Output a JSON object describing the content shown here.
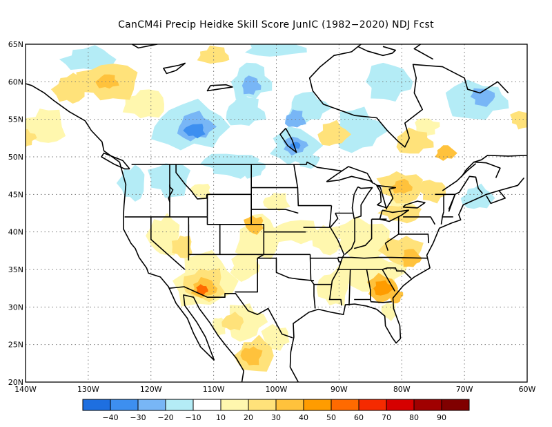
{
  "title": "CanCM4i Precip Heidke Skill Score JunIC (1982−2020) NDJ Fcst",
  "map": {
    "lat_range": [
      20,
      65
    ],
    "lon_range": [
      -140,
      -60
    ],
    "lat_labels": [
      "20N",
      "25N",
      "30N",
      "35N",
      "40N",
      "45N",
      "50N",
      "55N",
      "60N",
      "65N"
    ],
    "lon_labels": [
      "140W",
      "130W",
      "120W",
      "110W",
      "100W",
      "90W",
      "80W",
      "70W",
      "60W"
    ],
    "gridlines": "dotted",
    "skill_regions": [
      {
        "region": "Arizona / SW New Mexico",
        "lat": 32.5,
        "lon": -111.5,
        "value": 50
      },
      {
        "region": "Georgia",
        "lat": 32.5,
        "lon": -83,
        "value": 40
      },
      {
        "region": "Southern Ontario",
        "lat": 46,
        "lon": -80,
        "value": 40
      },
      {
        "region": "Northwest Canada",
        "lat": 60,
        "lon": -127,
        "value": 40
      },
      {
        "region": "Northern Mexico",
        "lat": 23.5,
        "lon": -103.5,
        "value": 30
      },
      {
        "region": "Central Canada",
        "lat": 54,
        "lon": -113,
        "value": -30
      },
      {
        "region": "Manitoba",
        "lat": 51.5,
        "lon": -97,
        "value": -30
      }
    ]
  },
  "colorbar": {
    "labels": [
      "−40",
      "−30",
      "−20",
      "−10",
      "10",
      "20",
      "30",
      "40",
      "50",
      "60",
      "70",
      "80",
      "90"
    ],
    "colors": [
      "#1e6fe0",
      "#3d8ff0",
      "#78b6f6",
      "#b4ecf6",
      "#ffffff",
      "#fff7ae",
      "#ffe27a",
      "#ffc23c",
      "#ff9c00",
      "#ff6a00",
      "#f52a00",
      "#d60000",
      "#a00000",
      "#800000"
    ]
  }
}
